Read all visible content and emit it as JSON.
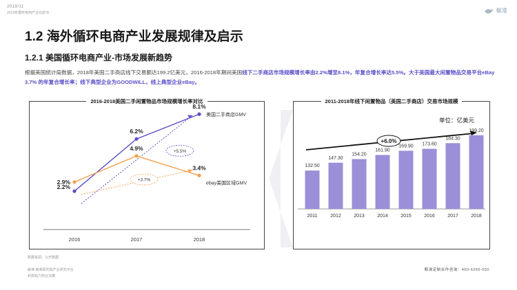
{
  "header": {
    "date": "2019/11",
    "subtitle": "2019年循环电商产业白皮书",
    "logo_text": "鲸准"
  },
  "page": {
    "title": "1.2 海外循环电商产业发展规律及启示",
    "subtitle": "1.2.1 美国循环电商产业-市场发展新趋势",
    "paragraph_parts": [
      {
        "text": "根据美国统计局数据，2018年美国二手商店线下交易额达199.2亿美元，2016-2018年期间美国",
        "highlight": false
      },
      {
        "text": "线下二手商店市场规模增长率由2.2%增至8.1%，年复合增长率达5.5%。大于美国最大闲置物品交易平台eBay 3.7% 的年复合增长率；线下典型企业为GOODWILL，线上典型企业eBay。",
        "highlight": true
      }
    ]
  },
  "colors": {
    "purple": "#5a4fc8",
    "orange": "#f5a04a",
    "bar": "#9b8fd8",
    "arrow_bg": "#eef0f4"
  },
  "chart_data": [
    {
      "type": "line",
      "title": "2016-2018美国二手闲置物品市场规模增长率对比",
      "x": [
        "2016",
        "2017",
        "2018"
      ],
      "series": [
        {
          "name": "美国二手商店GMV",
          "values": [
            2.2,
            6.2,
            8.1
          ],
          "labels": [
            "2.2%",
            "6.2%",
            "8.1%"
          ],
          "cagr_label": "+5.5%"
        },
        {
          "name": "ebay美国区域GMV",
          "values": [
            2.9,
            4.9,
            3.4
          ],
          "labels": [
            "2.9%",
            "4.9%",
            "3.4%"
          ],
          "cagr_label": "+3.7%"
        }
      ],
      "ylim": [
        0,
        9
      ]
    },
    {
      "type": "bar",
      "title": "2011-2018年线下闲置物品（美国二手商店）交易市场规模",
      "unit": "单位：亿美元",
      "categories": [
        "2011",
        "2012",
        "2013",
        "2014",
        "2015",
        "2016",
        "2017",
        "2018"
      ],
      "values": [
        132.5,
        147.3,
        154.2,
        161.9,
        169.9,
        173.6,
        184.3,
        199.2
      ],
      "value_labels": [
        "132.50",
        "147.30",
        "154.20",
        "161.90",
        "169.90",
        "173.60",
        "184.30",
        "199.20"
      ],
      "growth_label": "+6.0%"
    }
  ],
  "footer": {
    "source": "数据来源：公开数据",
    "line1": "鲸准·鲸准研究院产业研究平台",
    "line2": "科技助力商业决策",
    "contact": "鲸准定制合作咨询：400-6265-050"
  }
}
